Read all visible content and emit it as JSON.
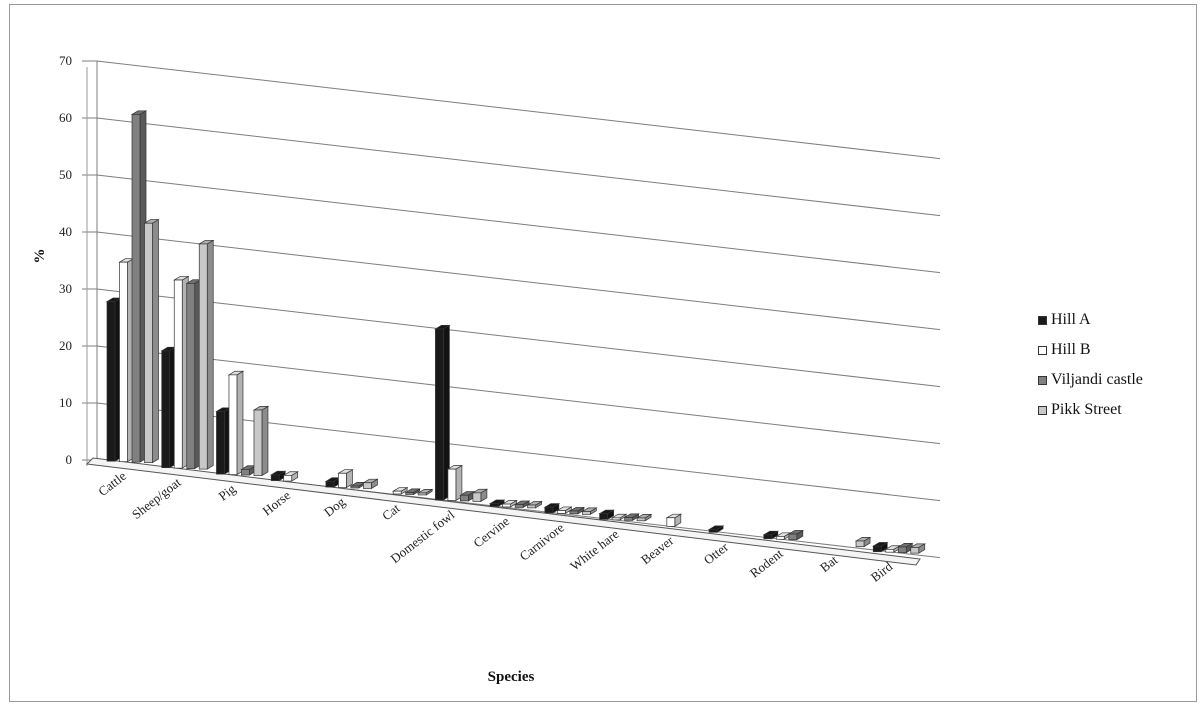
{
  "chart_data": {
    "type": "bar",
    "title": "",
    "xlabel": "Species",
    "ylabel": "%",
    "ylim": [
      0,
      70
    ],
    "yticks": [
      0,
      10,
      20,
      30,
      40,
      50,
      60,
      70
    ],
    "grid": true,
    "legend_position": "right",
    "categories": [
      "Cattle",
      "Sheep/goat",
      "Pig",
      "Horse",
      "Dog",
      "Cat",
      "Domestic fowl",
      "Cervine",
      "Carnivore",
      "White hare",
      "Beaver",
      "Otter",
      "Rodent",
      "Bat",
      "Bird"
    ],
    "series": [
      {
        "name": "Hill A",
        "color": "#1a1a1a",
        "values": [
          28,
          20.5,
          11,
          1,
          1,
          0,
          30,
          0.5,
          1,
          1,
          0,
          0.5,
          0.7,
          0,
          1
        ]
      },
      {
        "name": "Hill B",
        "color": "#ffffff",
        "values": [
          35,
          33,
          17.5,
          1,
          2.5,
          0.5,
          5.5,
          0.5,
          0.5,
          0.2,
          1.5,
          0,
          0.5,
          0,
          0.5
        ]
      },
      {
        "name": "Viljandi castle",
        "color": "#808080",
        "values": [
          61,
          32.5,
          1,
          0,
          0.3,
          0.3,
          1,
          0.5,
          0.5,
          0.5,
          0,
          0,
          1,
          0,
          1
        ]
      },
      {
        "name": "Pikk Street",
        "color": "#c8c8c8",
        "values": [
          42,
          39.5,
          11.5,
          0,
          1,
          0.3,
          1.5,
          0.5,
          0.5,
          0.5,
          0,
          0,
          0,
          1,
          1
        ]
      }
    ]
  }
}
